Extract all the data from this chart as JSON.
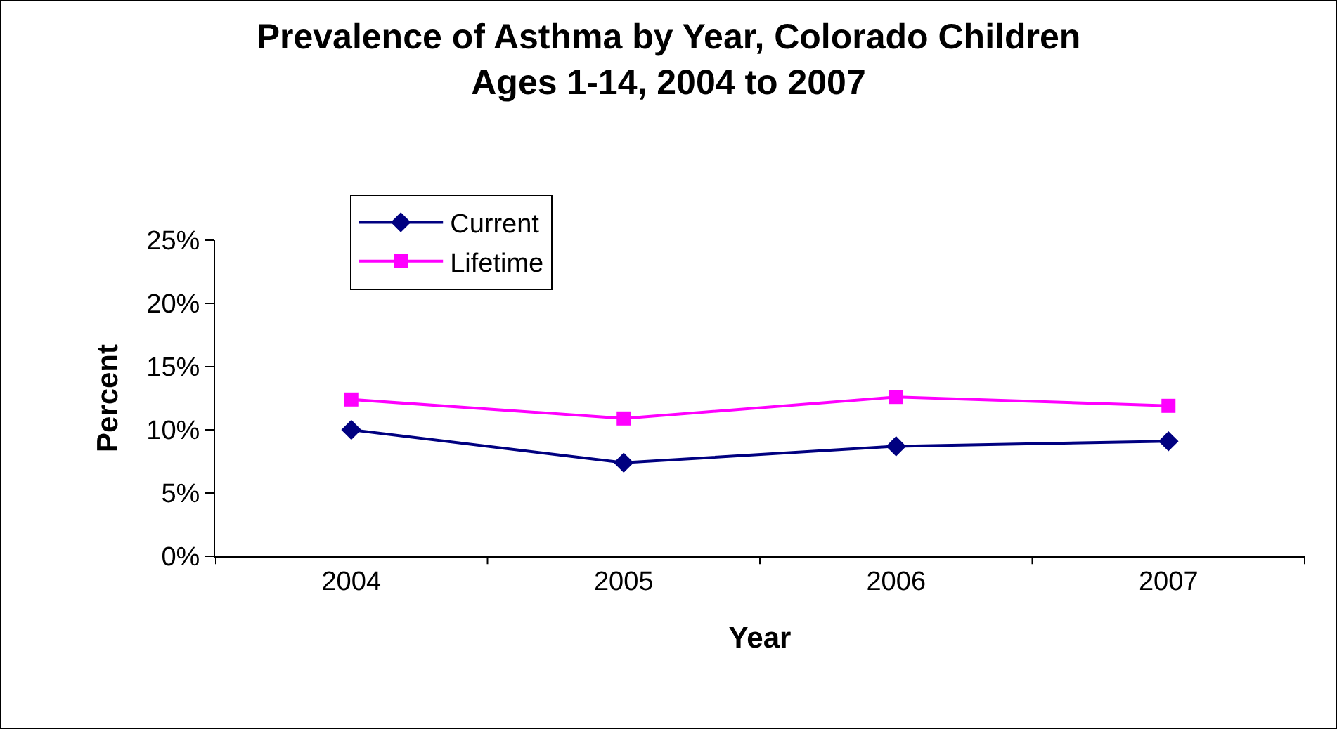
{
  "chart_data": {
    "type": "line",
    "title": "Prevalence of Asthma by Year, Colorado Children\nAges 1-14, 2004 to 2007",
    "xlabel": "Year",
    "ylabel": "Percent",
    "categories": [
      "2004",
      "2005",
      "2006",
      "2007"
    ],
    "series": [
      {
        "name": "Current",
        "color": "#000080",
        "marker": "diamond",
        "values": [
          10.0,
          7.4,
          8.7,
          9.1
        ]
      },
      {
        "name": "Lifetime",
        "color": "#ff00ff",
        "marker": "square",
        "values": [
          12.4,
          10.9,
          12.6,
          11.9
        ]
      }
    ],
    "ylim": [
      0,
      25
    ],
    "yticks": [
      {
        "value": 0,
        "label": "0%"
      },
      {
        "value": 5,
        "label": "5%"
      },
      {
        "value": 10,
        "label": "10%"
      },
      {
        "value": 15,
        "label": "15%"
      },
      {
        "value": 20,
        "label": "20%"
      },
      {
        "value": 25,
        "label": "25%"
      }
    ],
    "grid": false,
    "legend": "top left",
    "line_style": "solid"
  }
}
